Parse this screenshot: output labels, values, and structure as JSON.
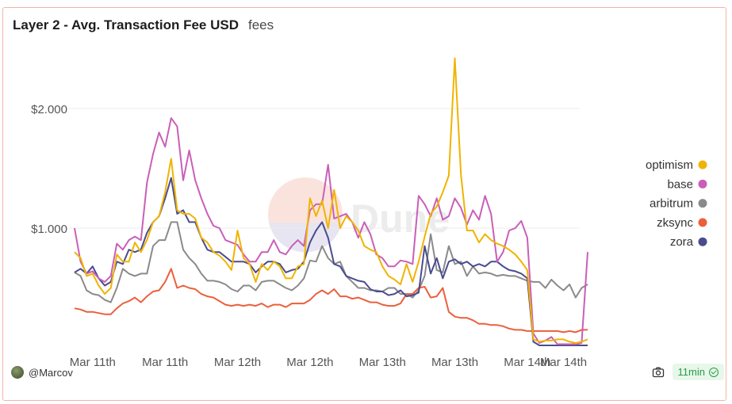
{
  "header": {
    "title": "Layer 2 - Avg. Transaction Fee USD",
    "subtitle": "fees"
  },
  "watermark": "Dune",
  "footer": {
    "author": "@Marcov",
    "refresh": "11min"
  },
  "chart_data": {
    "type": "line",
    "title": "Layer 2 - Avg. Transaction Fee USD",
    "xlabel": "",
    "ylabel": "",
    "yticks": [
      "$1.000",
      "$2.000"
    ],
    "ytick_values": [
      1.0,
      2.0
    ],
    "ylim": [
      0,
      2.45
    ],
    "xticks": [
      "Mar 11th",
      "Mar 11th",
      "Mar 12th",
      "Mar 12th",
      "Mar 13th",
      "Mar 13th",
      "Mar 14th",
      "Mar 14th"
    ],
    "xtick_positions": [
      3,
      15,
      27,
      39,
      51,
      63,
      75,
      81
    ],
    "x_count": 86,
    "grid": true,
    "legend_position": "right",
    "series": [
      {
        "name": "optimism",
        "color": "#f0b400",
        "values": [
          0.8,
          0.75,
          0.6,
          0.62,
          0.52,
          0.45,
          0.5,
          0.78,
          0.72,
          0.72,
          0.88,
          0.8,
          0.9,
          1.05,
          1.1,
          1.3,
          1.58,
          1.15,
          1.12,
          1.12,
          1.08,
          0.92,
          0.88,
          0.8,
          0.77,
          0.72,
          0.65,
          0.98,
          0.75,
          0.7,
          0.55,
          0.7,
          0.65,
          0.72,
          0.68,
          0.58,
          0.58,
          0.68,
          0.7,
          1.25,
          1.1,
          1.23,
          1.0,
          1.32,
          1.0,
          1.1,
          1.05,
          0.98,
          0.85,
          0.82,
          0.8,
          0.68,
          0.6,
          0.57,
          0.53,
          0.7,
          0.55,
          0.72,
          0.93,
          1.12,
          1.18,
          1.3,
          1.44,
          2.42,
          1.45,
          0.98,
          0.98,
          0.88,
          0.95,
          0.9,
          0.87,
          0.85,
          0.82,
          0.78,
          0.72,
          0.65,
          0.07,
          0.05,
          0.06,
          0.06,
          0.07,
          0.07,
          0.05,
          0.04,
          0.05,
          0.07
        ]
      },
      {
        "name": "base",
        "color": "#c95fb8",
        "values": [
          1.0,
          0.72,
          0.62,
          0.64,
          0.58,
          0.55,
          0.6,
          0.87,
          0.82,
          0.9,
          0.93,
          0.9,
          1.38,
          1.62,
          1.8,
          1.68,
          1.92,
          1.85,
          1.4,
          1.65,
          1.4,
          1.25,
          1.12,
          1.02,
          1.0,
          0.9,
          0.88,
          0.86,
          0.78,
          0.72,
          0.72,
          0.8,
          0.8,
          0.9,
          0.8,
          0.78,
          0.85,
          0.9,
          0.85,
          1.15,
          1.2,
          1.2,
          1.53,
          1.08,
          1.1,
          1.12,
          1.05,
          0.92,
          1.05,
          0.95,
          0.78,
          0.75,
          0.68,
          0.68,
          0.73,
          0.72,
          0.7,
          1.27,
          1.2,
          1.1,
          1.25,
          1.07,
          1.1,
          1.25,
          1.17,
          1.03,
          1.15,
          1.07,
          1.27,
          1.12,
          0.72,
          0.8,
          0.98,
          1.0,
          1.06,
          0.92,
          0.12,
          0.04,
          0.06,
          0.09,
          0.03,
          0.03,
          0.03,
          0.03,
          0.04,
          0.8
        ]
      },
      {
        "name": "arbitrum",
        "color": "#8a8a8a",
        "values": [
          0.63,
          0.6,
          0.48,
          0.45,
          0.44,
          0.4,
          0.38,
          0.5,
          0.66,
          0.62,
          0.6,
          0.62,
          0.62,
          0.85,
          0.9,
          0.9,
          1.05,
          1.05,
          0.82,
          0.75,
          0.7,
          0.62,
          0.56,
          0.56,
          0.55,
          0.53,
          0.49,
          0.47,
          0.52,
          0.52,
          0.48,
          0.55,
          0.56,
          0.56,
          0.53,
          0.5,
          0.48,
          0.52,
          0.58,
          0.73,
          0.72,
          0.85,
          0.75,
          0.7,
          0.72,
          0.6,
          0.55,
          0.5,
          0.5,
          0.48,
          0.48,
          0.47,
          0.5,
          0.5,
          0.45,
          0.45,
          0.42,
          0.48,
          0.6,
          0.95,
          0.65,
          0.63,
          0.85,
          0.7,
          0.72,
          0.6,
          0.68,
          0.62,
          0.63,
          0.62,
          0.6,
          0.61,
          0.6,
          0.6,
          0.58,
          0.56,
          0.55,
          0.55,
          0.5,
          0.57,
          0.52,
          0.48,
          0.53,
          0.42,
          0.5,
          0.53
        ]
      },
      {
        "name": "zksync",
        "color": "#ec5f3b",
        "values": [
          0.33,
          0.32,
          0.3,
          0.3,
          0.29,
          0.28,
          0.28,
          0.33,
          0.37,
          0.39,
          0.42,
          0.38,
          0.43,
          0.47,
          0.48,
          0.55,
          0.66,
          0.5,
          0.52,
          0.5,
          0.49,
          0.45,
          0.43,
          0.42,
          0.39,
          0.36,
          0.35,
          0.36,
          0.35,
          0.36,
          0.35,
          0.37,
          0.34,
          0.36,
          0.36,
          0.34,
          0.37,
          0.37,
          0.37,
          0.4,
          0.45,
          0.48,
          0.45,
          0.49,
          0.43,
          0.43,
          0.41,
          0.42,
          0.4,
          0.38,
          0.38,
          0.36,
          0.35,
          0.35,
          0.37,
          0.45,
          0.45,
          0.5,
          0.51,
          0.42,
          0.43,
          0.5,
          0.3,
          0.26,
          0.25,
          0.25,
          0.23,
          0.2,
          0.2,
          0.19,
          0.19,
          0.18,
          0.16,
          0.15,
          0.15,
          0.14,
          0.14,
          0.14,
          0.14,
          0.14,
          0.14,
          0.13,
          0.14,
          0.13,
          0.15,
          0.15
        ]
      },
      {
        "name": "zora",
        "color": "#4a4c8f",
        "values": [
          0.63,
          0.66,
          0.62,
          0.68,
          0.58,
          0.52,
          0.55,
          0.72,
          0.7,
          0.82,
          0.8,
          0.82,
          0.96,
          1.05,
          1.1,
          1.25,
          1.42,
          1.12,
          1.15,
          1.05,
          1.05,
          0.92,
          0.82,
          0.8,
          0.8,
          0.76,
          0.72,
          0.72,
          0.72,
          0.7,
          0.63,
          0.68,
          0.72,
          0.72,
          0.7,
          0.63,
          0.65,
          0.66,
          0.72,
          0.88,
          0.98,
          1.05,
          0.92,
          0.7,
          0.68,
          0.6,
          0.58,
          0.56,
          0.55,
          0.49,
          0.47,
          0.47,
          0.44,
          0.45,
          0.48,
          0.43,
          0.44,
          0.46,
          0.85,
          0.62,
          0.75,
          0.58,
          0.72,
          0.74,
          0.7,
          0.72,
          0.68,
          0.7,
          0.68,
          0.72,
          0.72,
          0.68,
          0.65,
          0.64,
          0.62,
          0.58,
          0.05,
          0.02,
          0.02,
          0.02,
          0.02,
          0.02,
          0.02,
          0.02,
          0.02,
          0.02
        ]
      }
    ]
  }
}
